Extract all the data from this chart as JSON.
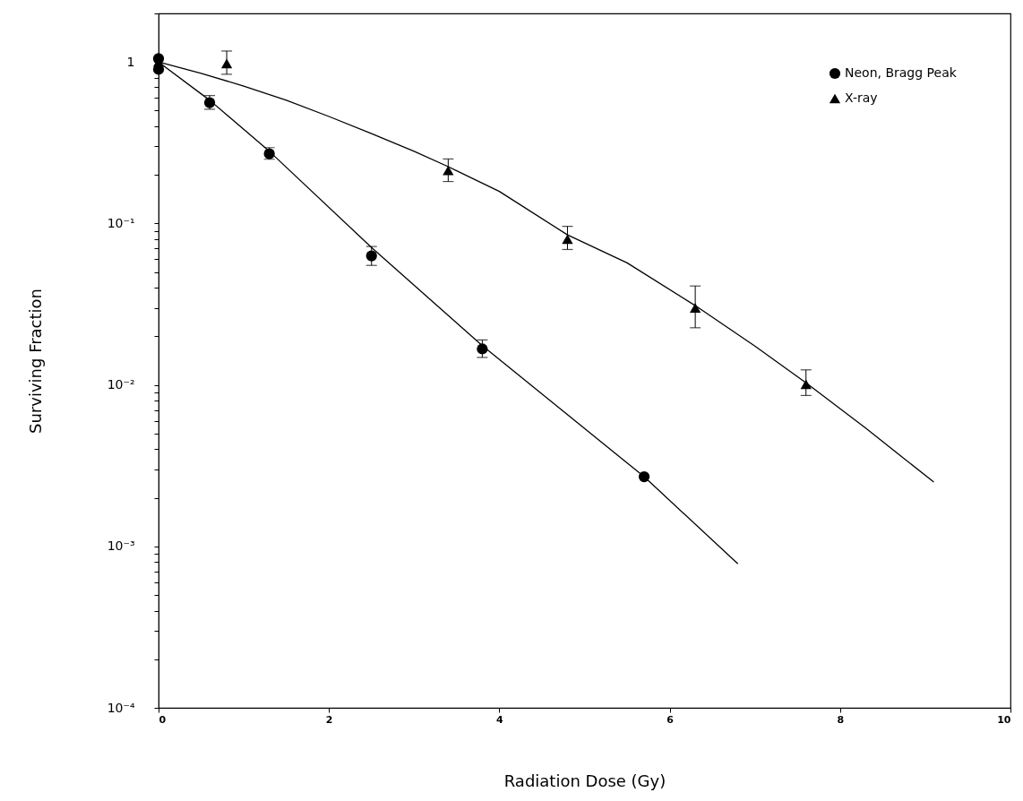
{
  "chart_data": {
    "type": "scatter",
    "xlabel": "Radiation Dose (Gy)",
    "ylabel": "Surviving Fraction",
    "log": "y",
    "grid": false,
    "legend": "top right",
    "xlim": [
      0,
      10
    ],
    "xticks": [
      0,
      2,
      4,
      6,
      8,
      10
    ],
    "ylim": [
      0.0001,
      2
    ],
    "yticks": [
      {
        "value": 0.0001,
        "label": "10⁻⁴"
      },
      {
        "value": 0.0002,
        "label": null
      },
      {
        "value": 0.0003,
        "label": null
      },
      {
        "value": 0.0004,
        "label": null
      },
      {
        "value": 0.0005,
        "label": null
      },
      {
        "value": 0.0006,
        "label": null
      },
      {
        "value": 0.0007,
        "label": null
      },
      {
        "value": 0.0008,
        "label": null
      },
      {
        "value": 0.0009,
        "label": null
      },
      {
        "value": 0.001,
        "label": "10⁻³"
      },
      {
        "value": 0.002,
        "label": null
      },
      {
        "value": 0.003,
        "label": null
      },
      {
        "value": 0.004,
        "label": null
      },
      {
        "value": 0.005,
        "label": null
      },
      {
        "value": 0.006,
        "label": null
      },
      {
        "value": 0.007,
        "label": null
      },
      {
        "value": 0.008,
        "label": null
      },
      {
        "value": 0.009,
        "label": null
      },
      {
        "value": 0.01,
        "label": "10⁻²"
      },
      {
        "value": 0.02,
        "label": null
      },
      {
        "value": 0.03,
        "label": null
      },
      {
        "value": 0.04,
        "label": null
      },
      {
        "value": 0.05,
        "label": null
      },
      {
        "value": 0.06,
        "label": null
      },
      {
        "value": 0.07,
        "label": null
      },
      {
        "value": 0.08,
        "label": null
      },
      {
        "value": 0.09,
        "label": null
      },
      {
        "value": 0.1,
        "label": "10⁻¹"
      },
      {
        "value": 0.2,
        "label": null
      },
      {
        "value": 0.3,
        "label": null
      },
      {
        "value": 0.4,
        "label": null
      },
      {
        "value": 0.5,
        "label": null
      },
      {
        "value": 0.6,
        "label": null
      },
      {
        "value": 0.7,
        "label": null
      },
      {
        "value": 0.8,
        "label": null
      },
      {
        "value": 0.9,
        "label": null
      },
      1,
      {
        "value": 2,
        "label": null
      }
    ],
    "series": [
      {
        "name": "Neon, Bragg Peak",
        "marker": "circle",
        "color": "#000000",
        "x": [
          0,
          0,
          0.6,
          1.3,
          2.5,
          3.8,
          5.7
        ],
        "values": [
          1.05,
          0.9,
          0.56,
          0.27,
          0.063,
          0.0167,
          0.0027
        ],
        "errors": [
          null,
          null,
          [
            0.51,
            0.62
          ],
          [
            0.25,
            0.295
          ],
          [
            0.055,
            0.072
          ],
          [
            0.0148,
            0.019
          ],
          null
        ]
      },
      {
        "name": "X-ray",
        "marker": "triangle",
        "color": "#000000",
        "x": [
          0,
          0.8,
          3.4,
          4.8,
          6.3,
          7.6
        ],
        "values": [
          1.0,
          0.98,
          0.213,
          0.08,
          0.03,
          0.0101
        ],
        "errors": [
          null,
          [
            0.84,
            1.17
          ],
          [
            0.182,
            0.251
          ],
          [
            0.069,
            0.096
          ],
          [
            0.0226,
            0.041
          ],
          [
            0.0086,
            0.0124
          ]
        ]
      },
      {
        "type": "line",
        "marker": "none",
        "color": "#000000",
        "x": [
          0,
          0.6,
          1.3,
          2.5,
          3.8,
          5.7,
          6.8
        ],
        "values": [
          1,
          0.58,
          0.28,
          0.071,
          0.0175,
          0.0027,
          0.00078
        ]
      },
      {
        "type": "line",
        "marker": "none",
        "color": "#000000",
        "x": [
          0,
          0.5,
          1,
          1.5,
          2,
          2.5,
          3,
          3.4,
          4,
          4.8,
          5.5,
          6.3,
          7,
          7.6,
          8.3,
          9.1
        ],
        "values": [
          1,
          0.85,
          0.71,
          0.58,
          0.46,
          0.36,
          0.28,
          0.225,
          0.158,
          0.085,
          0.057,
          0.031,
          0.0174,
          0.0103,
          0.0054,
          0.0025
        ]
      }
    ]
  }
}
